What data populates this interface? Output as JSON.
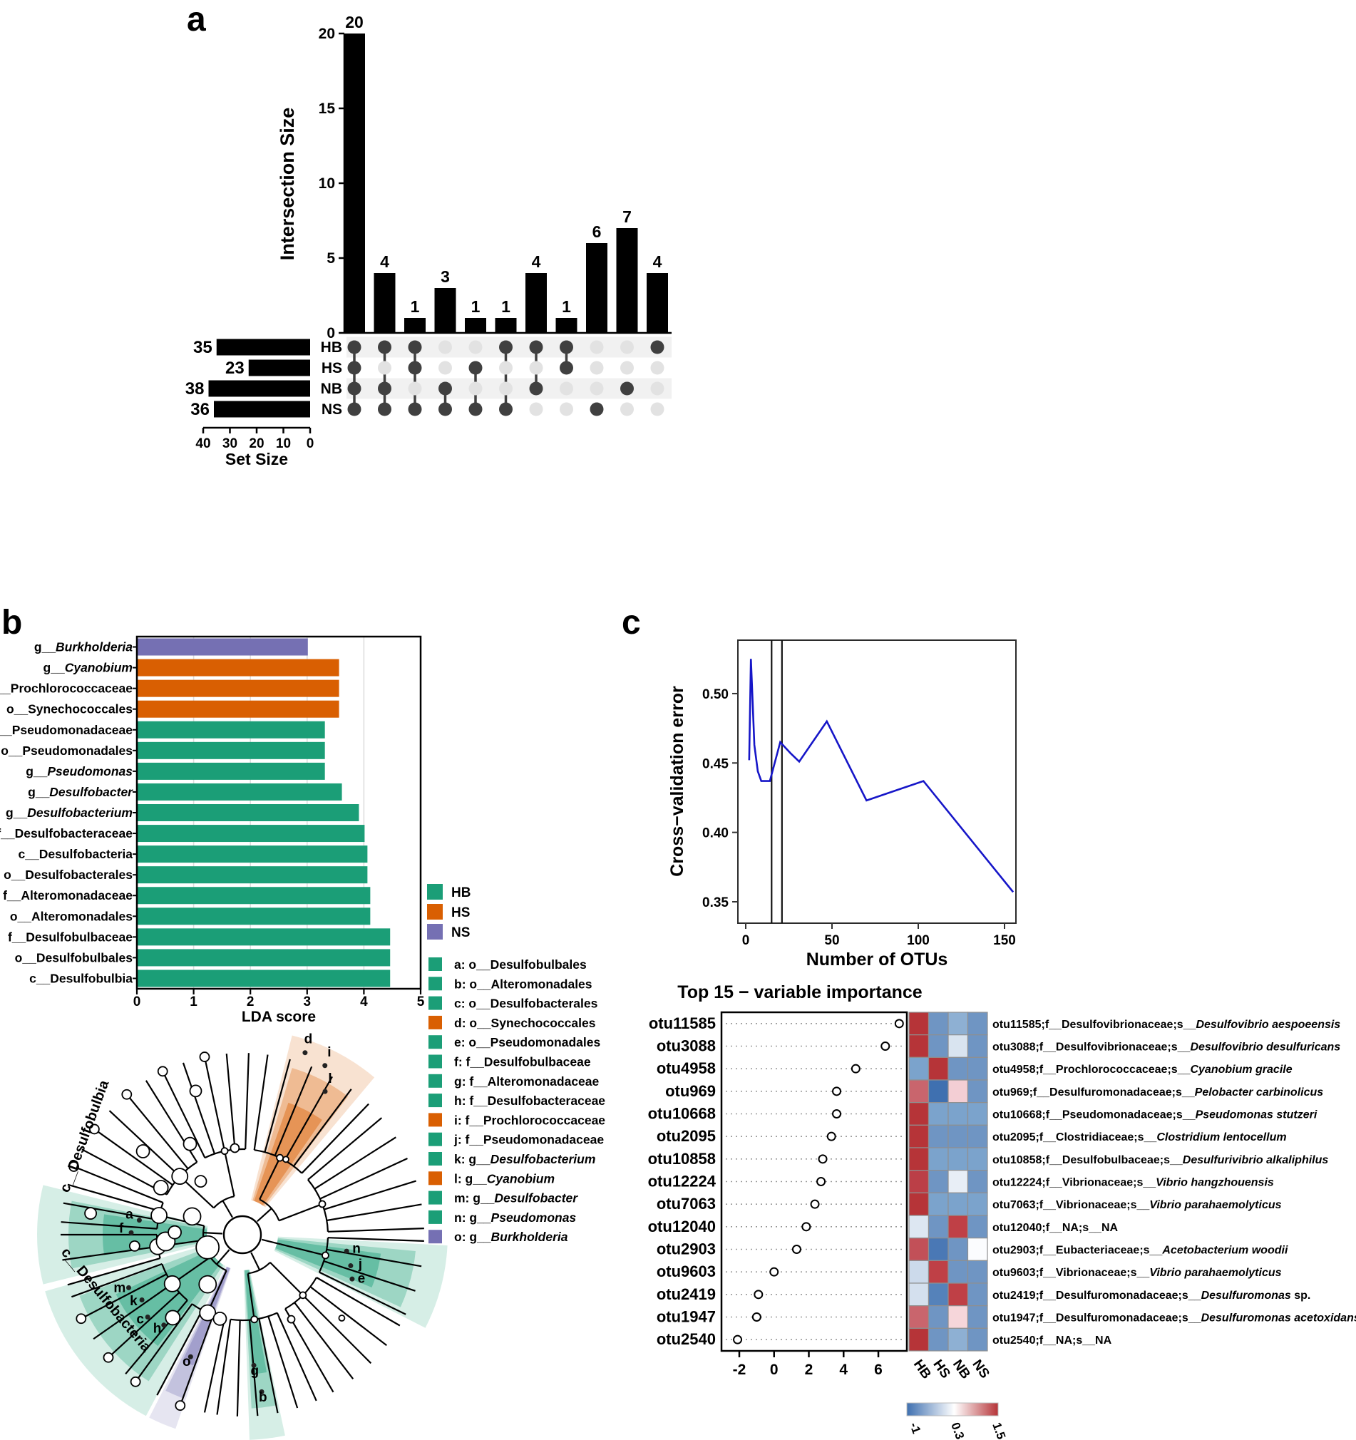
{
  "panels": {
    "a_label": "a",
    "b_label": "b",
    "c_label": "c"
  },
  "colors": {
    "hb_green": "#1b9e77",
    "hs_orange": "#d95f02",
    "ns_purple": "#7570b3",
    "bar_black": "#000000",
    "cv_line_blue": "#1616c8"
  },
  "chart_data": [
    {
      "id": "upset",
      "type": "bar",
      "ylabel": "Intersection Size",
      "set_axis_label": "Set Size",
      "y_ticks": [
        0,
        5,
        10,
        15,
        20
      ],
      "ylim": [
        0,
        20
      ],
      "set_axis_ticks": [
        40,
        30,
        20,
        10,
        0
      ],
      "sets": [
        {
          "name": "HB",
          "size": 35
        },
        {
          "name": "HS",
          "size": 23
        },
        {
          "name": "NB",
          "size": 38
        },
        {
          "name": "NS",
          "size": 36
        }
      ],
      "intersections": [
        {
          "size": 20,
          "members": [
            "HB",
            "HS",
            "NB",
            "NS"
          ]
        },
        {
          "size": 4,
          "members": [
            "HB",
            "NB",
            "NS"
          ]
        },
        {
          "size": 1,
          "members": [
            "HB",
            "HS",
            "NS"
          ]
        },
        {
          "size": 3,
          "members": [
            "NB",
            "NS"
          ]
        },
        {
          "size": 1,
          "members": [
            "HS",
            "NS"
          ]
        },
        {
          "size": 1,
          "members": [
            "HB",
            "NS"
          ]
        },
        {
          "size": 4,
          "members": [
            "HB",
            "NB"
          ]
        },
        {
          "size": 1,
          "members": [
            "HB",
            "HS"
          ]
        },
        {
          "size": 6,
          "members": [
            "NS"
          ]
        },
        {
          "size": 7,
          "members": [
            "NB"
          ]
        },
        {
          "size": 4,
          "members": [
            "HB"
          ]
        }
      ]
    },
    {
      "id": "lda",
      "type": "bar",
      "xlabel": "LDA score",
      "x_ticks": [
        0,
        1,
        2,
        3,
        4,
        5
      ],
      "xlim": [
        0,
        5
      ],
      "bars": [
        {
          "plain": "g__",
          "italic": "Burkholderia",
          "value": 3.0,
          "group": "NS"
        },
        {
          "plain": "g__",
          "italic": "Cyanobium",
          "value": 3.55,
          "group": "HS"
        },
        {
          "plain": "f__Prochlorococcaceae",
          "italic": "",
          "value": 3.55,
          "group": "HS"
        },
        {
          "plain": "o__Synechococcales",
          "italic": "",
          "value": 3.55,
          "group": "HS"
        },
        {
          "plain": "f__Pseudomonadaceae",
          "italic": "",
          "value": 3.3,
          "group": "HB"
        },
        {
          "plain": "o__Pseudomonadales",
          "italic": "",
          "value": 3.3,
          "group": "HB"
        },
        {
          "plain": "g__",
          "italic": "Pseudomonas",
          "value": 3.3,
          "group": "HB"
        },
        {
          "plain": "g__",
          "italic": "Desulfobacter",
          "value": 3.6,
          "group": "HB"
        },
        {
          "plain": "g__",
          "italic": "Desulfobacterium",
          "value": 3.9,
          "group": "HB"
        },
        {
          "plain": "f__Desulfobacteraceae",
          "italic": "",
          "value": 4.0,
          "group": "HB"
        },
        {
          "plain": "c__Desulfobacteria",
          "italic": "",
          "value": 4.05,
          "group": "HB"
        },
        {
          "plain": "o__Desulfobacterales",
          "italic": "",
          "value": 4.05,
          "group": "HB"
        },
        {
          "plain": "f__Alteromonadaceae",
          "italic": "",
          "value": 4.1,
          "group": "HB"
        },
        {
          "plain": "o__Alteromonadales",
          "italic": "",
          "value": 4.1,
          "group": "HB"
        },
        {
          "plain": "f__Desulfobulbaceae",
          "italic": "",
          "value": 4.45,
          "group": "HB"
        },
        {
          "plain": "o__Desulfobulbales",
          "italic": "",
          "value": 4.45,
          "group": "HB"
        },
        {
          "plain": "c__Desulfobulbia",
          "italic": "",
          "value": 4.45,
          "group": "HB"
        }
      ],
      "legend_groups": [
        {
          "label": "HB",
          "color": "#1b9e77"
        },
        {
          "label": "HS",
          "color": "#d95f02"
        },
        {
          "label": "NS",
          "color": "#7570b3"
        }
      ],
      "legend_taxa": [
        {
          "plain": "a: o__Desulfobulbales",
          "italic": "",
          "color": "#1b9e77"
        },
        {
          "plain": "b: o__Alteromonadales",
          "italic": "",
          "color": "#1b9e77"
        },
        {
          "plain": "c: o__Desulfobacterales",
          "italic": "",
          "color": "#1b9e77"
        },
        {
          "plain": "d: o__Synechococcales",
          "italic": "",
          "color": "#d95f02"
        },
        {
          "plain": "e: o__Pseudomonadales",
          "italic": "",
          "color": "#1b9e77"
        },
        {
          "plain": "f: f__Desulfobulbaceae",
          "italic": "",
          "color": "#1b9e77"
        },
        {
          "plain": "g: f__Alteromonadaceae",
          "italic": "",
          "color": "#1b9e77"
        },
        {
          "plain": "h: f__Desulfobacteraceae",
          "italic": "",
          "color": "#1b9e77"
        },
        {
          "plain": "i: f__Prochlorococcaceae",
          "italic": "",
          "color": "#d95f02"
        },
        {
          "plain": "j: f__Pseudomonadaceae",
          "italic": "",
          "color": "#1b9e77"
        },
        {
          "plain": "k: g__",
          "italic": "Desulfobacterium",
          "color": "#1b9e77"
        },
        {
          "plain": "l: g__",
          "italic": "Cyanobium",
          "color": "#d95f02"
        },
        {
          "plain": "m: g__",
          "italic": "Desulfobacter",
          "color": "#1b9e77"
        },
        {
          "plain": "n: g__",
          "italic": "Pseudomonas",
          "color": "#1b9e77"
        },
        {
          "plain": "o: g__",
          "italic": "Burkholderia",
          "color": "#7570b3"
        }
      ]
    },
    {
      "id": "cladogram",
      "type": "cladogram",
      "outer_labels": [
        {
          "text": "c__Desulfobulbia",
          "x": 86,
          "y": 262,
          "rot": -70
        },
        {
          "text": "c__Desulfobacteria",
          "x": 75,
          "y": 345,
          "rot": 50
        }
      ],
      "wedges": [
        {
          "color": "#d95f02",
          "start": 50,
          "end": 76,
          "letters": [
            {
              "ch": "i",
              "a": 64,
              "r": 278
            },
            {
              "ch": "d",
              "a": 71,
              "r": 284
            },
            {
              "ch": "l",
              "a": 60,
              "r": 246
            }
          ]
        },
        {
          "color": "#1b9e77",
          "start": 166,
          "end": 194,
          "letters": [
            {
              "ch": "a",
              "a": 172,
              "r": 160
            },
            {
              "ch": "f",
              "a": 179,
              "r": 170
            }
          ]
        },
        {
          "color": "#1b9e77",
          "start": 196,
          "end": 242,
          "letters": [
            {
              "ch": "m",
              "a": 205,
              "r": 190
            },
            {
              "ch": "k",
              "a": 213,
              "r": 182
            },
            {
              "ch": "c",
              "a": 221,
              "r": 190
            },
            {
              "ch": "h",
              "a": 229,
              "r": 182
            }
          ]
        },
        {
          "color": "#7570b3",
          "start": 243,
          "end": 251,
          "letters": [
            {
              "ch": "o",
              "a": 247,
              "r": 200
            }
          ]
        },
        {
          "color": "#1b9e77",
          "start": 272,
          "end": 282,
          "letters": [
            {
              "ch": "g",
              "a": 275,
              "r": 198
            },
            {
              "ch": "b",
              "a": 277,
              "r": 236
            }
          ]
        },
        {
          "color": "#1b9e77",
          "start": 333,
          "end": 357,
          "letters": [
            {
              "ch": "n",
              "a": 351,
              "r": 162
            },
            {
              "ch": "j",
              "a": 344,
              "r": 172
            },
            {
              "ch": "e",
              "a": 338,
              "r": 180
            }
          ]
        }
      ]
    },
    {
      "id": "cv",
      "type": "line",
      "ylabel": "Cross−validation error",
      "xlabel": "Number of OTUs",
      "x_ticks": [
        0,
        50,
        100,
        150
      ],
      "y_ticks": [
        "0.35",
        "0.40",
        "0.45",
        "0.50"
      ],
      "vlines": [
        15,
        21
      ],
      "line_color": "#1616c8",
      "points": [
        [
          2,
          0.452
        ],
        [
          3,
          0.525
        ],
        [
          5,
          0.463
        ],
        [
          7,
          0.444
        ],
        [
          9,
          0.437
        ],
        [
          14,
          0.437
        ],
        [
          20,
          0.465
        ],
        [
          26,
          0.457
        ],
        [
          31,
          0.451
        ],
        [
          47,
          0.48
        ],
        [
          70,
          0.423
        ],
        [
          103,
          0.437
        ],
        [
          155,
          0.357
        ]
      ]
    },
    {
      "id": "vip",
      "type": "scatter+heatmap",
      "title": "Top 15 − variable importance",
      "x_ticks": [
        -2,
        0,
        2,
        4,
        6
      ],
      "heat_cols": [
        "HB",
        "HS",
        "NB",
        "NS"
      ],
      "colorbar": {
        "ticks": [
          "-1",
          "0.3",
          "1.5"
        ],
        "left_color": "#3f70b0",
        "mid_color": "#ffffff",
        "right_color": "#b63438"
      },
      "rows": [
        {
          "otu": "otu11585",
          "importance": 7.2,
          "cells": [
            "#b63438",
            "#6f95c3",
            "#8eb0d3",
            "#6f95c3"
          ],
          "label_plain": "otu11585;f__Desulfovibrionaceae;s__",
          "label_italic": "Desulfovibrio aespoeensis",
          "label_tail": ""
        },
        {
          "otu": "otu3088",
          "importance": 6.4,
          "cells": [
            "#b63438",
            "#6f95c3",
            "#d9e4f0",
            "#6f95c3"
          ],
          "label_plain": "otu3088;f__Desulfovibrionaceae;s__",
          "label_italic": "Desulfovibrio desulfuricans",
          "label_tail": ""
        },
        {
          "otu": "otu4958",
          "importance": 4.7,
          "cells": [
            "#7ba3cc",
            "#b63438",
            "#6f95c3",
            "#6f95c3"
          ],
          "label_plain": "otu4958;f__Prochlorococcaceae;s__",
          "label_italic": "Cyanobium gracile",
          "label_tail": ""
        },
        {
          "otu": "otu969",
          "importance": 3.6,
          "cells": [
            "#c9656d",
            "#3f70b0",
            "#f3ced4",
            "#6f95c3"
          ],
          "label_plain": "otu969;f__Desulfuromonadaceae;s__",
          "label_italic": "Pelobacter carbinolicus",
          "label_tail": ""
        },
        {
          "otu": "otu10668",
          "importance": 3.6,
          "cells": [
            "#b63438",
            "#7ba3cc",
            "#7ba3cc",
            "#7ba3cc"
          ],
          "label_plain": "otu10668;f__Pseudomonadaceae;s__",
          "label_italic": "Pseudomonas stutzeri",
          "label_tail": ""
        },
        {
          "otu": "otu2095",
          "importance": 3.3,
          "cells": [
            "#b63438",
            "#6f95c3",
            "#6f95c3",
            "#6f95c3"
          ],
          "label_plain": "otu2095;f__Clostridiaceae;s__",
          "label_italic": "Clostridium lentocellum",
          "label_tail": ""
        },
        {
          "otu": "otu10858",
          "importance": 2.8,
          "cells": [
            "#b63438",
            "#7ba3cc",
            "#7ba3cc",
            "#7ba3cc"
          ],
          "label_plain": "otu10858;f__Desulfobulbaceae;s__",
          "label_italic": "Desulfurivibrio alkaliphilus",
          "label_tail": ""
        },
        {
          "otu": "otu12224",
          "importance": 2.7,
          "cells": [
            "#bb3f47",
            "#6f95c3",
            "#e8eef6",
            "#6f95c3"
          ],
          "label_plain": "otu12224;f__Vibrionaceae;s__",
          "label_italic": "Vibrio hangzhouensis",
          "label_tail": ""
        },
        {
          "otu": "otu7063",
          "importance": 2.35,
          "cells": [
            "#b63438",
            "#7ba3cc",
            "#7ba3cc",
            "#7ba3cc"
          ],
          "label_plain": "otu7063;f__Vibrionaceae;s__",
          "label_italic": "Vibrio parahaemolyticus",
          "label_tail": ""
        },
        {
          "otu": "otu12040",
          "importance": 1.85,
          "cells": [
            "#dde7f2",
            "#6f95c3",
            "#bf4046",
            "#6f95c3"
          ],
          "label_plain": "otu12040;f__NA;s__NA",
          "label_italic": "",
          "label_tail": ""
        },
        {
          "otu": "otu2903",
          "importance": 1.3,
          "cells": [
            "#c25058",
            "#4a78b5",
            "#6f95c3",
            "#fbfcfe"
          ],
          "label_plain": "otu2903;f__Eubacteriaceae;s__",
          "label_italic": "Acetobacterium woodii",
          "label_tail": ""
        },
        {
          "otu": "otu9603",
          "importance": 0.0,
          "cells": [
            "#ccdaeb",
            "#bf4046",
            "#6f95c3",
            "#6f95c3"
          ],
          "label_plain": "otu9603;f__Vibrionaceae;s__",
          "label_italic": "Vibrio parahaemolyticus",
          "label_tail": ""
        },
        {
          "otu": "otu2419",
          "importance": -0.9,
          "cells": [
            "#d4e0ee",
            "#5582ba",
            "#bf4046",
            "#6f95c3"
          ],
          "label_plain": "otu2419;f__Desulfuromonadaceae;s__",
          "label_italic": "Desulfuromonas",
          "label_tail": " sp."
        },
        {
          "otu": "otu1947",
          "importance": -1.0,
          "cells": [
            "#c9656d",
            "#6f95c3",
            "#f6d6da",
            "#6f95c3"
          ],
          "label_plain": "otu1947;f__Desulfuromonadaceae;s__",
          "label_italic": "Desulfuromonas acetoxidans",
          "label_tail": ""
        },
        {
          "otu": "otu2540",
          "importance": -2.1,
          "cells": [
            "#b63438",
            "#6f95c3",
            "#8eb0d3",
            "#6f95c3"
          ],
          "label_plain": "otu2540;f__NA;s__NA",
          "label_italic": "",
          "label_tail": ""
        }
      ]
    }
  ]
}
